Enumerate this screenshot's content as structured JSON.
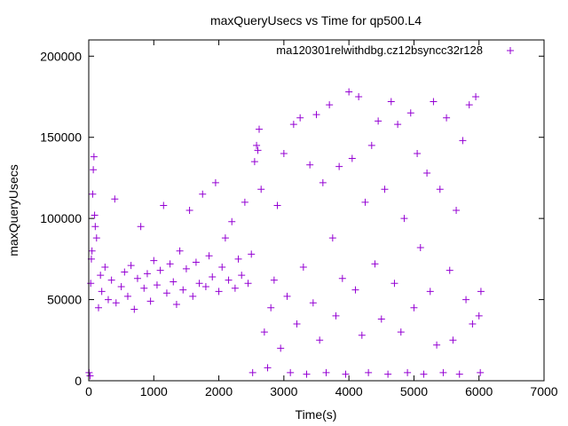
{
  "chart_data": {
    "type": "scatter",
    "title": "maxQueryUsecs vs Time for qp500.L4",
    "xlabel": "Time(s)",
    "ylabel": "maxQueryUsecs",
    "xlim": [
      0,
      7000
    ],
    "ylim": [
      0,
      210000
    ],
    "x_ticks": [
      0,
      1000,
      2000,
      3000,
      4000,
      5000,
      6000,
      7000
    ],
    "y_ticks": [
      0,
      50000,
      100000,
      150000,
      200000
    ],
    "x_tick_labels": [
      "0",
      "1000",
      "2000",
      "3000",
      "4000",
      "5000",
      "6000",
      "7000"
    ],
    "y_tick_labels": [
      "0",
      "50000",
      "100000",
      "150000",
      "200000"
    ],
    "grid": false,
    "legend_position": "top-right",
    "marker": "plus",
    "series": [
      {
        "name": "ma120301relwithdbg.cz12bsyncc32r128",
        "color": "#9400d3",
        "points": [
          [
            5,
            5000
          ],
          [
            20,
            3000
          ],
          [
            30,
            60000
          ],
          [
            40,
            75000
          ],
          [
            50,
            80000
          ],
          [
            60,
            115000
          ],
          [
            70,
            130000
          ],
          [
            80,
            138000
          ],
          [
            90,
            102000
          ],
          [
            100,
            95000
          ],
          [
            120,
            88000
          ],
          [
            150,
            45000
          ],
          [
            180,
            65000
          ],
          [
            200,
            55000
          ],
          [
            250,
            70000
          ],
          [
            300,
            50000
          ],
          [
            350,
            62000
          ],
          [
            400,
            112000
          ],
          [
            420,
            48000
          ],
          [
            500,
            58000
          ],
          [
            550,
            67000
          ],
          [
            600,
            52000
          ],
          [
            650,
            71000
          ],
          [
            700,
            44000
          ],
          [
            750,
            63000
          ],
          [
            800,
            95000
          ],
          [
            850,
            57000
          ],
          [
            900,
            66000
          ],
          [
            950,
            49000
          ],
          [
            1000,
            74000
          ],
          [
            1050,
            59000
          ],
          [
            1100,
            68000
          ],
          [
            1150,
            108000
          ],
          [
            1200,
            54000
          ],
          [
            1250,
            72000
          ],
          [
            1300,
            61000
          ],
          [
            1350,
            47000
          ],
          [
            1400,
            80000
          ],
          [
            1450,
            56000
          ],
          [
            1500,
            69000
          ],
          [
            1550,
            105000
          ],
          [
            1600,
            52000
          ],
          [
            1650,
            73000
          ],
          [
            1700,
            60000
          ],
          [
            1750,
            115000
          ],
          [
            1800,
            58000
          ],
          [
            1850,
            77000
          ],
          [
            1900,
            64000
          ],
          [
            1950,
            122000
          ],
          [
            2000,
            55000
          ],
          [
            2050,
            70000
          ],
          [
            2100,
            88000
          ],
          [
            2150,
            62000
          ],
          [
            2200,
            98000
          ],
          [
            2250,
            57000
          ],
          [
            2300,
            75000
          ],
          [
            2350,
            65000
          ],
          [
            2400,
            110000
          ],
          [
            2450,
            60000
          ],
          [
            2500,
            78000
          ],
          [
            2520,
            5000
          ],
          [
            2550,
            135000
          ],
          [
            2580,
            145000
          ],
          [
            2600,
            142000
          ],
          [
            2620,
            155000
          ],
          [
            2650,
            118000
          ],
          [
            2700,
            30000
          ],
          [
            2750,
            8000
          ],
          [
            2800,
            45000
          ],
          [
            2850,
            62000
          ],
          [
            2900,
            108000
          ],
          [
            2950,
            20000
          ],
          [
            3000,
            140000
          ],
          [
            3050,
            52000
          ],
          [
            3100,
            5000
          ],
          [
            3150,
            158000
          ],
          [
            3200,
            35000
          ],
          [
            3250,
            162000
          ],
          [
            3300,
            70000
          ],
          [
            3350,
            4000
          ],
          [
            3400,
            133000
          ],
          [
            3450,
            48000
          ],
          [
            3500,
            164000
          ],
          [
            3550,
            25000
          ],
          [
            3600,
            122000
          ],
          [
            3650,
            5000
          ],
          [
            3700,
            170000
          ],
          [
            3750,
            88000
          ],
          [
            3800,
            40000
          ],
          [
            3850,
            132000
          ],
          [
            3900,
            63000
          ],
          [
            3950,
            4000
          ],
          [
            4000,
            178000
          ],
          [
            4050,
            137000
          ],
          [
            4100,
            56000
          ],
          [
            4150,
            175000
          ],
          [
            4200,
            28000
          ],
          [
            4250,
            110000
          ],
          [
            4300,
            5000
          ],
          [
            4350,
            145000
          ],
          [
            4400,
            72000
          ],
          [
            4450,
            160000
          ],
          [
            4500,
            38000
          ],
          [
            4550,
            118000
          ],
          [
            4600,
            4000
          ],
          [
            4650,
            172000
          ],
          [
            4700,
            60000
          ],
          [
            4750,
            158000
          ],
          [
            4800,
            30000
          ],
          [
            4850,
            100000
          ],
          [
            4900,
            5000
          ],
          [
            4950,
            165000
          ],
          [
            5000,
            45000
          ],
          [
            5050,
            140000
          ],
          [
            5100,
            82000
          ],
          [
            5150,
            4000
          ],
          [
            5200,
            128000
          ],
          [
            5250,
            55000
          ],
          [
            5300,
            172000
          ],
          [
            5350,
            22000
          ],
          [
            5400,
            118000
          ],
          [
            5450,
            5000
          ],
          [
            5500,
            162000
          ],
          [
            5550,
            68000
          ],
          [
            5600,
            25000
          ],
          [
            5650,
            105000
          ],
          [
            5700,
            4000
          ],
          [
            5750,
            148000
          ],
          [
            5800,
            50000
          ],
          [
            5850,
            170000
          ],
          [
            5900,
            35000
          ],
          [
            5950,
            175000
          ],
          [
            6000,
            40000
          ],
          [
            6020,
            5000
          ],
          [
            6030,
            55000
          ]
        ]
      }
    ]
  }
}
